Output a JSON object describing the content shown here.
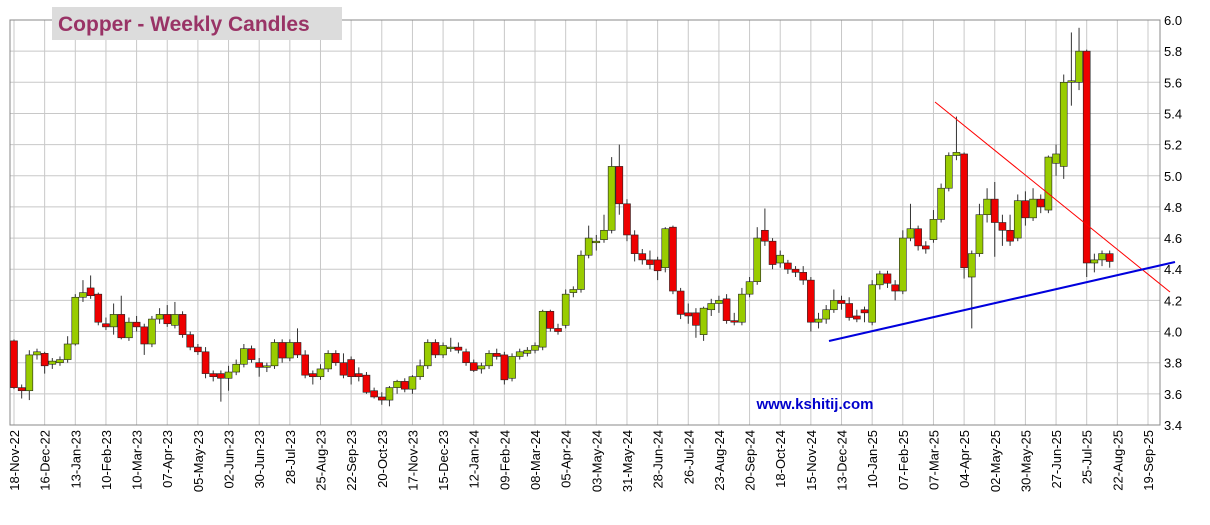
{
  "chart_data": {
    "type": "candlestick",
    "title": "Copper - Weekly Candles",
    "annotation": "www.kshitij.com",
    "up_color": "#99cc00",
    "down_color": "#ee0000",
    "grid": true,
    "categories": [
      "18-Nov-22",
      null,
      null,
      null,
      "16-Dec-22",
      null,
      null,
      null,
      "13-Jan-23",
      null,
      null,
      null,
      "10-Feb-23",
      null,
      null,
      null,
      "10-Mar-23",
      null,
      null,
      null,
      "07-Apr-23",
      null,
      null,
      null,
      "05-May-23",
      null,
      null,
      null,
      "02-Jun-23",
      null,
      null,
      null,
      "30-Jun-23",
      null,
      null,
      null,
      "28-Jul-23",
      null,
      null,
      null,
      "25-Aug-23",
      null,
      null,
      null,
      "22-Sep-23",
      null,
      null,
      null,
      "20-Oct-23",
      null,
      null,
      null,
      "17-Nov-23",
      null,
      null,
      null,
      "15-Dec-23",
      null,
      null,
      null,
      "12-Jan-24",
      null,
      null,
      null,
      "09-Feb-24",
      null,
      null,
      null,
      "08-Mar-24",
      null,
      null,
      null,
      "05-Apr-24",
      null,
      null,
      null,
      "03-May-24",
      null,
      null,
      null,
      "31-May-24",
      null,
      null,
      null,
      "28-Jun-24",
      null,
      null,
      null,
      "26-Jul-24",
      null,
      null,
      null,
      "23-Aug-24",
      null,
      null,
      null,
      "20-Sep-24",
      null,
      null,
      null,
      "18-Oct-24",
      null,
      null,
      null,
      "15-Nov-24",
      null,
      null,
      null,
      "13-Dec-24",
      null,
      null,
      null,
      "10-Jan-25",
      null,
      null,
      null,
      "07-Feb-25",
      null,
      null,
      null,
      "07-Mar-25",
      null,
      null,
      null,
      "04-Apr-25",
      null,
      null,
      null,
      "02-May-25",
      null,
      null,
      null,
      "30-May-25",
      null,
      null,
      null,
      "27-Jun-25",
      null,
      null,
      null,
      "25-Jul-25",
      null,
      null,
      null,
      "22-Aug-25",
      null,
      null,
      null,
      "19-Sep-25"
    ],
    "candles": [
      [
        3.94,
        3.95,
        3.63,
        3.64
      ],
      [
        3.64,
        3.66,
        3.57,
        3.62
      ],
      [
        3.62,
        3.88,
        3.56,
        3.85
      ],
      [
        3.85,
        3.89,
        3.82,
        3.87
      ],
      [
        3.86,
        3.87,
        3.73,
        3.78
      ],
      [
        3.79,
        3.83,
        3.76,
        3.81
      ],
      [
        3.8,
        3.84,
        3.78,
        3.82
      ],
      [
        3.82,
        3.97,
        3.8,
        3.92
      ],
      [
        3.92,
        4.24,
        3.91,
        4.22
      ],
      [
        4.22,
        4.33,
        4.19,
        4.25
      ],
      [
        4.28,
        4.36,
        4.21,
        4.23
      ],
      [
        4.24,
        4.25,
        4.04,
        4.06
      ],
      [
        4.05,
        4.09,
        4.01,
        4.03
      ],
      [
        4.03,
        4.18,
        3.98,
        4.11
      ],
      [
        4.11,
        4.23,
        3.95,
        3.96
      ],
      [
        3.96,
        4.09,
        3.94,
        4.06
      ],
      [
        4.06,
        4.1,
        4.0,
        4.03
      ],
      [
        4.03,
        4.05,
        3.85,
        3.92
      ],
      [
        3.92,
        4.1,
        3.9,
        4.08
      ],
      [
        4.08,
        4.15,
        4.05,
        4.11
      ],
      [
        4.11,
        4.17,
        4.03,
        4.05
      ],
      [
        4.04,
        4.19,
        4.02,
        4.11
      ],
      [
        4.11,
        4.13,
        3.96,
        3.98
      ],
      [
        3.98,
        4.0,
        3.88,
        3.9
      ],
      [
        3.9,
        3.92,
        3.85,
        3.87
      ],
      [
        3.87,
        3.9,
        3.7,
        3.73
      ],
      [
        3.73,
        3.75,
        3.68,
        3.71
      ],
      [
        3.73,
        3.75,
        3.55,
        3.7
      ],
      [
        3.7,
        3.78,
        3.62,
        3.74
      ],
      [
        3.74,
        3.82,
        3.72,
        3.79
      ],
      [
        3.79,
        3.92,
        3.77,
        3.89
      ],
      [
        3.89,
        3.91,
        3.8,
        3.82
      ],
      [
        3.8,
        3.83,
        3.71,
        3.77
      ],
      [
        3.77,
        3.8,
        3.74,
        3.78
      ],
      [
        3.78,
        3.95,
        3.76,
        3.93
      ],
      [
        3.93,
        3.95,
        3.8,
        3.83
      ],
      [
        3.83,
        3.95,
        3.81,
        3.93
      ],
      [
        3.93,
        4.02,
        3.83,
        3.85
      ],
      [
        3.85,
        3.88,
        3.7,
        3.72
      ],
      [
        3.73,
        3.75,
        3.66,
        3.71
      ],
      [
        3.71,
        3.79,
        3.69,
        3.76
      ],
      [
        3.76,
        3.88,
        3.74,
        3.86
      ],
      [
        3.86,
        3.88,
        3.78,
        3.8
      ],
      [
        3.8,
        3.86,
        3.7,
        3.72
      ],
      [
        3.82,
        3.84,
        3.66,
        3.71
      ],
      [
        3.73,
        3.77,
        3.68,
        3.71
      ],
      [
        3.72,
        3.74,
        3.6,
        3.61
      ],
      [
        3.62,
        3.64,
        3.57,
        3.58
      ],
      [
        3.58,
        3.61,
        3.53,
        3.56
      ],
      [
        3.56,
        3.65,
        3.52,
        3.64
      ],
      [
        3.64,
        3.69,
        3.6,
        3.68
      ],
      [
        3.68,
        3.7,
        3.61,
        3.63
      ],
      [
        3.63,
        3.72,
        3.6,
        3.71
      ],
      [
        3.71,
        3.82,
        3.69,
        3.78
      ],
      [
        3.78,
        3.95,
        3.76,
        3.93
      ],
      [
        3.93,
        3.95,
        3.83,
        3.85
      ],
      [
        3.85,
        3.93,
        3.83,
        3.91
      ],
      [
        3.89,
        3.96,
        3.87,
        3.9
      ],
      [
        3.9,
        3.93,
        3.86,
        3.88
      ],
      [
        3.87,
        3.89,
        3.78,
        3.8
      ],
      [
        3.8,
        3.82,
        3.74,
        3.75
      ],
      [
        3.76,
        3.8,
        3.73,
        3.78
      ],
      [
        3.78,
        3.88,
        3.76,
        3.86
      ],
      [
        3.86,
        3.89,
        3.82,
        3.84
      ],
      [
        3.85,
        3.87,
        3.66,
        3.69
      ],
      [
        3.7,
        3.86,
        3.68,
        3.84
      ],
      [
        3.84,
        3.89,
        3.82,
        3.87
      ],
      [
        3.86,
        3.9,
        3.84,
        3.88
      ],
      [
        3.88,
        3.93,
        3.86,
        3.91
      ],
      [
        3.9,
        4.14,
        3.88,
        4.13
      ],
      [
        4.13,
        4.14,
        4.0,
        4.02
      ],
      [
        4.02,
        4.05,
        3.98,
        4.0
      ],
      [
        4.04,
        4.27,
        4.02,
        4.24
      ],
      [
        4.25,
        4.29,
        4.22,
        4.27
      ],
      [
        4.27,
        4.52,
        4.25,
        4.49
      ],
      [
        4.49,
        4.68,
        4.47,
        4.6
      ],
      [
        4.57,
        4.62,
        4.52,
        4.58
      ],
      [
        4.59,
        4.75,
        4.57,
        4.65
      ],
      [
        4.65,
        5.12,
        4.63,
        5.06
      ],
      [
        5.06,
        5.2,
        4.75,
        4.82
      ],
      [
        4.82,
        4.85,
        4.58,
        4.62
      ],
      [
        4.62,
        4.65,
        4.45,
        4.5
      ],
      [
        4.5,
        4.53,
        4.43,
        4.46
      ],
      [
        4.46,
        4.52,
        4.4,
        4.43
      ],
      [
        4.46,
        4.48,
        4.33,
        4.39
      ],
      [
        4.41,
        4.67,
        4.38,
        4.66
      ],
      [
        4.67,
        4.68,
        4.24,
        4.26
      ],
      [
        4.26,
        4.28,
        4.08,
        4.11
      ],
      [
        4.12,
        4.18,
        4.05,
        4.1
      ],
      [
        4.12,
        4.15,
        3.96,
        4.04
      ],
      [
        3.98,
        4.16,
        3.94,
        4.15
      ],
      [
        4.14,
        4.21,
        4.1,
        4.18
      ],
      [
        4.18,
        4.23,
        4.12,
        4.2
      ],
      [
        4.21,
        4.24,
        4.05,
        4.07
      ],
      [
        4.07,
        4.12,
        4.04,
        4.06
      ],
      [
        4.06,
        4.28,
        4.04,
        4.24
      ],
      [
        4.24,
        4.35,
        4.22,
        4.32
      ],
      [
        4.32,
        4.67,
        4.3,
        4.6
      ],
      [
        4.65,
        4.79,
        4.55,
        4.58
      ],
      [
        4.58,
        4.6,
        4.4,
        4.43
      ],
      [
        4.44,
        4.52,
        4.41,
        4.49
      ],
      [
        4.44,
        4.46,
        4.37,
        4.4
      ],
      [
        4.4,
        4.42,
        4.35,
        4.38
      ],
      [
        4.38,
        4.42,
        4.3,
        4.33
      ],
      [
        4.33,
        4.35,
        4.0,
        4.06
      ],
      [
        4.06,
        4.12,
        4.02,
        4.08
      ],
      [
        4.08,
        4.17,
        4.05,
        4.14
      ],
      [
        4.14,
        4.27,
        4.12,
        4.2
      ],
      [
        4.2,
        4.23,
        4.14,
        4.18
      ],
      [
        4.18,
        4.22,
        4.07,
        4.09
      ],
      [
        4.1,
        4.14,
        4.06,
        4.08
      ],
      [
        4.14,
        4.16,
        4.06,
        4.12
      ],
      [
        4.06,
        4.33,
        4.04,
        4.3
      ],
      [
        4.3,
        4.39,
        4.27,
        4.37
      ],
      [
        4.37,
        4.39,
        4.28,
        4.31
      ],
      [
        4.3,
        4.33,
        4.2,
        4.26
      ],
      [
        4.26,
        4.65,
        4.24,
        4.6
      ],
      [
        4.6,
        4.82,
        4.58,
        4.66
      ],
      [
        4.66,
        4.68,
        4.52,
        4.55
      ],
      [
        4.55,
        4.58,
        4.5,
        4.53
      ],
      [
        4.59,
        4.78,
        4.57,
        4.72
      ],
      [
        4.72,
        4.95,
        4.7,
        4.92
      ],
      [
        4.92,
        5.15,
        4.9,
        5.13
      ],
      [
        5.13,
        5.38,
        5.1,
        5.15
      ],
      [
        5.14,
        5.15,
        4.34,
        4.41
      ],
      [
        4.35,
        4.52,
        4.02,
        4.5
      ],
      [
        4.5,
        4.82,
        4.48,
        4.75
      ],
      [
        4.75,
        4.92,
        4.7,
        4.85
      ],
      [
        4.85,
        4.96,
        4.48,
        4.7
      ],
      [
        4.7,
        4.75,
        4.55,
        4.65
      ],
      [
        4.65,
        4.75,
        4.55,
        4.58
      ],
      [
        4.6,
        4.88,
        4.58,
        4.84
      ],
      [
        4.84,
        4.9,
        4.68,
        4.73
      ],
      [
        4.73,
        4.92,
        4.71,
        4.85
      ],
      [
        4.85,
        4.88,
        4.76,
        4.8
      ],
      [
        4.78,
        5.13,
        4.76,
        5.12
      ],
      [
        5.08,
        5.2,
        5.0,
        5.14
      ],
      [
        5.06,
        5.65,
        4.98,
        5.6
      ],
      [
        5.6,
        5.92,
        5.45,
        5.61
      ],
      [
        5.6,
        5.95,
        5.55,
        5.8
      ],
      [
        5.8,
        5.81,
        4.35,
        4.44
      ],
      [
        4.44,
        4.5,
        4.38,
        4.46
      ],
      [
        4.46,
        4.52,
        4.42,
        4.5
      ],
      [
        4.5,
        4.52,
        4.41,
        4.45
      ]
    ],
    "ylim": [
      3.4,
      6.0
    ],
    "yticks": [
      3.4,
      3.6,
      3.8,
      {
        "value": 4,
        "label": "4.0"
      },
      4.2,
      4.4,
      4.6,
      4.8,
      {
        "value": 5,
        "label": "5.0"
      },
      5.2,
      5.4,
      5.6,
      5.8,
      {
        "value": 6,
        "label": "6.0"
      }
    ]
  }
}
